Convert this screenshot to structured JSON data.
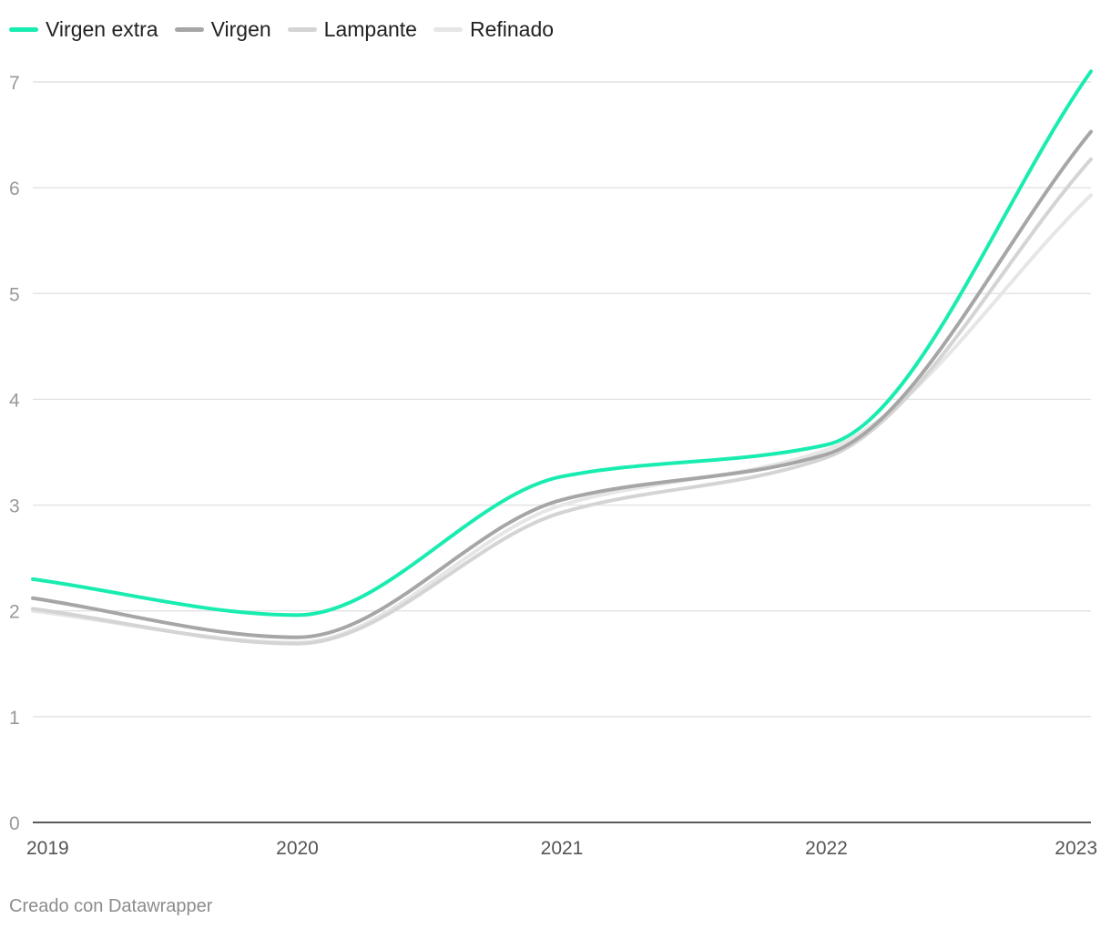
{
  "chart_data": {
    "type": "line",
    "title": "",
    "xlabel": "",
    "ylabel": "",
    "x": [
      2019,
      2020,
      2021,
      2022,
      2023
    ],
    "ylim": [
      0,
      7
    ],
    "yticks": [
      0,
      1,
      2,
      3,
      4,
      5,
      6,
      7
    ],
    "grid": true,
    "legend_position": "top-left",
    "series": [
      {
        "name": "Virgen extra",
        "color": "#19ecb0",
        "values": [
          2.3,
          1.96,
          3.27,
          3.57,
          7.1
        ]
      },
      {
        "name": "Virgen",
        "color": "#a6a6a6",
        "values": [
          2.12,
          1.75,
          3.05,
          3.48,
          6.53
        ]
      },
      {
        "name": "Lampante",
        "color": "#d4d4d4",
        "values": [
          2.02,
          1.69,
          2.93,
          3.45,
          6.27
        ]
      },
      {
        "name": "Refinado",
        "color": "#e6e6e6",
        "values": [
          2.0,
          1.7,
          3.0,
          3.52,
          5.93
        ]
      }
    ]
  },
  "footer": {
    "credit": "Creado con Datawrapper"
  }
}
